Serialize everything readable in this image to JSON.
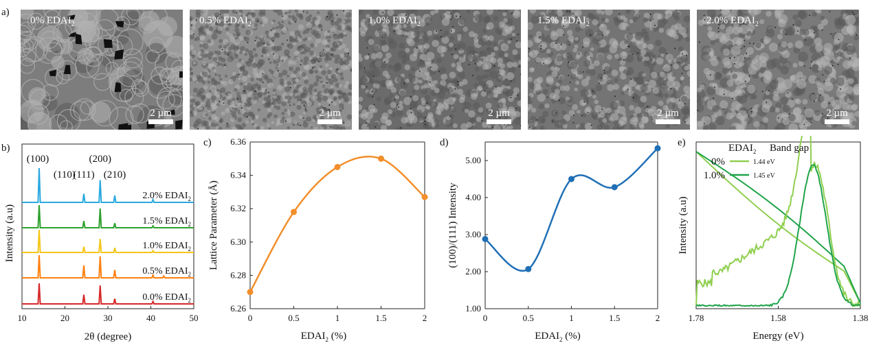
{
  "panel_labels": [
    "a)",
    "b)",
    "c)",
    "d)",
    "e)"
  ],
  "sem_images": [
    {
      "label_main": "0% EDAI",
      "label_sub": "2",
      "scale": "2 µm",
      "tone": "#7d7d7d",
      "grain": "large"
    },
    {
      "label_main": "0.5% EDAI",
      "label_sub": "2",
      "scale": "2 µm",
      "tone": "#8f8f8f",
      "grain": "fine"
    },
    {
      "label_main": "1.0% EDAI",
      "label_sub": "2",
      "scale": "2 µm",
      "tone": "#6b6b6b",
      "grain": "medium"
    },
    {
      "label_main": "1.5% EDAI",
      "label_sub": "2",
      "scale": "2 µm",
      "tone": "#747474",
      "grain": "medium"
    },
    {
      "label_main": "2.0% EDAI",
      "label_sub": "2",
      "scale": "2 µm",
      "tone": "#7a7a7a",
      "grain": "coarse"
    }
  ],
  "chart_data": [
    {
      "type": "line",
      "panel": "b)",
      "xlabel": "2θ (degree)",
      "ylabel": "Intensity (a.u)",
      "xlim": [
        10,
        50
      ],
      "xticks": [
        "10",
        "20",
        "30",
        "40",
        "50"
      ],
      "peak_labels": [
        "(100)",
        "(110)",
        "(111)",
        "(200)",
        "(210)"
      ],
      "peak_positions": [
        14.0,
        19.9,
        24.4,
        28.2,
        31.6
      ],
      "series": [
        {
          "name": "0.0% EDAI2",
          "label_main": "0.0% EDAI",
          "label_sub": "2",
          "color": "#d62728",
          "peaks": [
            [
              14.0,
              1.0
            ],
            [
              24.4,
              0.45
            ],
            [
              28.2,
              0.9
            ],
            [
              31.6,
              0.25
            ],
            [
              40.5,
              0.12
            ]
          ]
        },
        {
          "name": "0.5% EDAI2",
          "label_main": "0.5% EDAI",
          "label_sub": "2",
          "color": "#ff7f0e",
          "peaks": [
            [
              14.0,
              1.0
            ],
            [
              24.4,
              0.55
            ],
            [
              28.2,
              0.95
            ],
            [
              31.6,
              0.35
            ],
            [
              40.5,
              0.12
            ],
            [
              43.0,
              0.08
            ]
          ]
        },
        {
          "name": "1.0% EDAI2",
          "label_main": "1.0% EDAI",
          "label_sub": "2",
          "color": "#f5c518",
          "peaks": [
            [
              14.0,
              1.0
            ],
            [
              24.4,
              0.25
            ],
            [
              28.2,
              0.6
            ],
            [
              31.6,
              0.2
            ],
            [
              40.5,
              0.08
            ]
          ]
        },
        {
          "name": "1.5% EDAI2",
          "label_main": "1.5% EDAI",
          "label_sub": "2",
          "color": "#2ca02c",
          "peaks": [
            [
              14.0,
              1.0
            ],
            [
              24.4,
              0.3
            ],
            [
              28.2,
              0.85
            ],
            [
              31.6,
              0.2
            ],
            [
              40.5,
              0.08
            ]
          ]
        },
        {
          "name": "2.0% EDAI2",
          "label_main": "2.0% EDAI",
          "label_sub": "2",
          "color": "#29a8e0",
          "peaks": [
            [
              14.0,
              1.0
            ],
            [
              24.4,
              0.25
            ],
            [
              28.2,
              0.65
            ],
            [
              31.6,
              0.2
            ],
            [
              40.5,
              0.08
            ]
          ]
        }
      ]
    },
    {
      "type": "line",
      "panel": "c)",
      "xlabel_main": "EDAI",
      "xlabel_sub": "2",
      "xlabel_tail": " (%)",
      "ylabel": "Lattice Parameter (Å)",
      "x": [
        0,
        0.5,
        1,
        1.5,
        2
      ],
      "xticks": [
        "0",
        "0.5",
        "1",
        "1.5",
        "2"
      ],
      "values": [
        6.27,
        6.318,
        6.345,
        6.35,
        6.327
      ],
      "ylim": [
        6.26,
        6.36
      ],
      "yticks": [
        "6.26",
        "6.28",
        "6.30",
        "6.32",
        "6.34",
        "6.36"
      ],
      "color": "#f28e2b"
    },
    {
      "type": "line",
      "panel": "d)",
      "xlabel_main": "EDAI",
      "xlabel_sub": "2",
      "xlabel_tail": " (%)",
      "ylabel": "(100)/(111) Intensity",
      "x": [
        0,
        0.5,
        1,
        1.5,
        2
      ],
      "xticks": [
        "0",
        "0.5",
        "1",
        "1.5",
        "2"
      ],
      "values": [
        2.88,
        2.07,
        4.5,
        4.28,
        5.33
      ],
      "ylim": [
        1.0,
        5.5
      ],
      "yticks": [
        "1.00",
        "2.00",
        "3.00",
        "4.00",
        "5.00"
      ],
      "color": "#1f6fb5"
    },
    {
      "type": "line",
      "panel": "e)",
      "xlabel": "Energy (eV)",
      "ylabel": "Intensity (a.u)",
      "xlim": [
        1.78,
        1.38
      ],
      "xticks": [
        "1.78",
        "1.58",
        "1.38"
      ],
      "legend_title_main": "EDAI",
      "legend_title_sub": "2",
      "legend_bandgap": "Band gap",
      "series": [
        {
          "name": "0%",
          "bandgap": "1.44 eV",
          "color": "#8fcf4f"
        },
        {
          "name": "1.0%",
          "bandgap": "1.45 eV",
          "color": "#1fa34a"
        }
      ]
    }
  ]
}
